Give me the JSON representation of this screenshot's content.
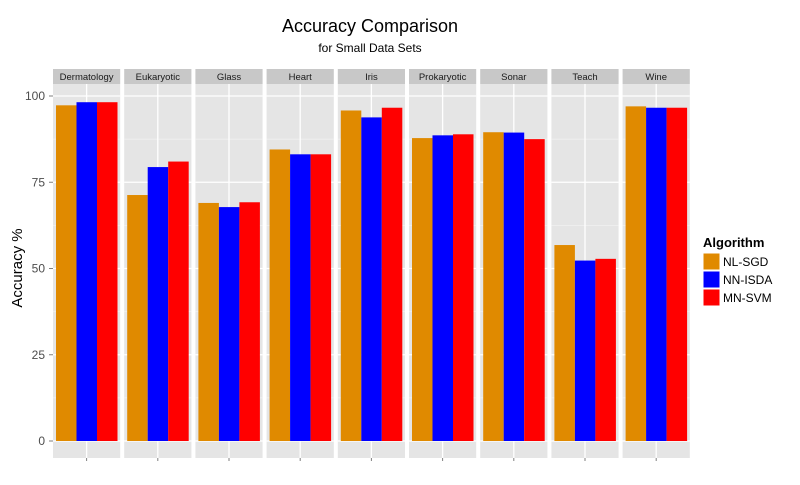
{
  "chart_data": {
    "type": "bar",
    "title": "Accuracy Comparison",
    "subtitle": "for Small Data Sets",
    "xlabel": "",
    "ylabel": "Accuracy %",
    "ylim": [
      0,
      100
    ],
    "yticks": [
      0,
      25,
      50,
      75,
      100
    ],
    "grid": true,
    "legend_title": "Algorithm",
    "legend_position": "right",
    "facets": [
      "Dermatology",
      "Eukaryotic",
      "Glass",
      "Heart",
      "Iris",
      "Prokaryotic",
      "Sonar",
      "Teach",
      "Wine"
    ],
    "series": [
      {
        "name": "NL-SGD",
        "color": "#E08A00",
        "values": [
          97.3,
          71.3,
          69.0,
          84.5,
          95.8,
          87.8,
          89.5,
          56.8,
          97.0
        ]
      },
      {
        "name": "NN-ISDA",
        "color": "#0000FF",
        "values": [
          98.2,
          79.4,
          67.8,
          83.1,
          93.8,
          88.6,
          89.4,
          52.3,
          96.6
        ]
      },
      {
        "name": "MN-SVM",
        "color": "#FF0000",
        "values": [
          98.2,
          81.0,
          69.2,
          83.1,
          96.6,
          88.9,
          87.5,
          52.8,
          96.6
        ]
      }
    ]
  }
}
